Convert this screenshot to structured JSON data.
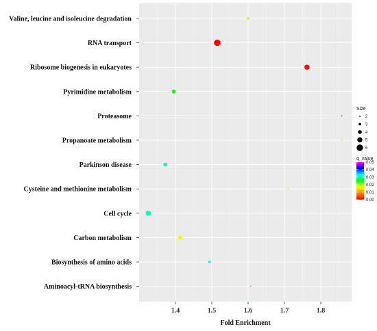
{
  "chart_data": {
    "type": "scatter",
    "xlabel": "Fold Enrichment",
    "xlim": [
      1.3,
      1.885
    ],
    "xticks": [
      "1.4",
      "1.5",
      "1.6",
      "1.7",
      "1.8"
    ],
    "xtick_values": [
      1.4,
      1.5,
      1.6,
      1.7,
      1.8
    ],
    "grid": true,
    "background": "#ebebeb",
    "categories": [
      "Valine, leucine and isoleucine degradation",
      "RNA transport",
      "Ribosome biogenesis in eukaryotes",
      "Pyrimidine metabolism",
      "Proteasome",
      "Propanoate metabolism",
      "Parkinson disease",
      "Cysteine and methionine metabolism",
      "Cell cycle",
      "Carbon metabolism",
      "Biosynthesis of amino acids",
      "Aminoacyl-tRNA biosynthesis"
    ],
    "points": [
      {
        "category": "Valine, leucine and isoleucine degradation",
        "x": 1.6,
        "size": 3,
        "q_value": 0.015
      },
      {
        "category": "RNA transport",
        "x": 1.515,
        "size": 6,
        "q_value": 0.0
      },
      {
        "category": "Ribosome biogenesis in eukaryotes",
        "x": 1.762,
        "size": 5,
        "q_value": 0.0005
      },
      {
        "category": "Pyrimidine metabolism",
        "x": 1.395,
        "size": 4,
        "q_value": 0.025
      },
      {
        "category": "Proteasome",
        "x": 1.858,
        "size": 2,
        "q_value": 0.004
      },
      {
        "category": "Propanoate metabolism",
        "x": 1.858,
        "size": 2,
        "q_value": 0.014
      },
      {
        "category": "Parkinson disease",
        "x": 1.372,
        "size": 4,
        "q_value": 0.031
      },
      {
        "category": "Cysteine and methionine metabolism",
        "x": 1.71,
        "size": 2,
        "q_value": 0.019
      },
      {
        "category": "Cell cycle",
        "x": 1.325,
        "size": 5,
        "q_value": 0.031
      },
      {
        "category": "Carbon metabolism",
        "x": 1.413,
        "size": 4,
        "q_value": 0.016
      },
      {
        "category": "Biosynthesis of amino acids",
        "x": 1.493,
        "size": 3,
        "q_value": 0.032
      },
      {
        "category": "Aminoacyl-tRNA biosynthesis",
        "x": 1.607,
        "size": 2,
        "q_value": 0.022
      }
    ],
    "legend_size": {
      "title": "Size",
      "values": [
        2,
        3,
        4,
        5,
        6
      ],
      "labels": [
        "2",
        "3",
        "4",
        "5",
        "6"
      ]
    },
    "legend_color": {
      "title": "q_value",
      "range": [
        0,
        0.05
      ],
      "labels": [
        "0.05",
        "0.04",
        "0.03",
        "0.02",
        "0.01",
        "0.00"
      ],
      "values": [
        0.05,
        0.04,
        0.03,
        0.02,
        0.01,
        0.0
      ],
      "gradient_stops": [
        "#ff0000",
        "#ff8000",
        "#ffff00",
        "#00ff00",
        "#00ffff",
        "#0000ff",
        "#ff00ff"
      ]
    },
    "legend_placement": "right"
  }
}
